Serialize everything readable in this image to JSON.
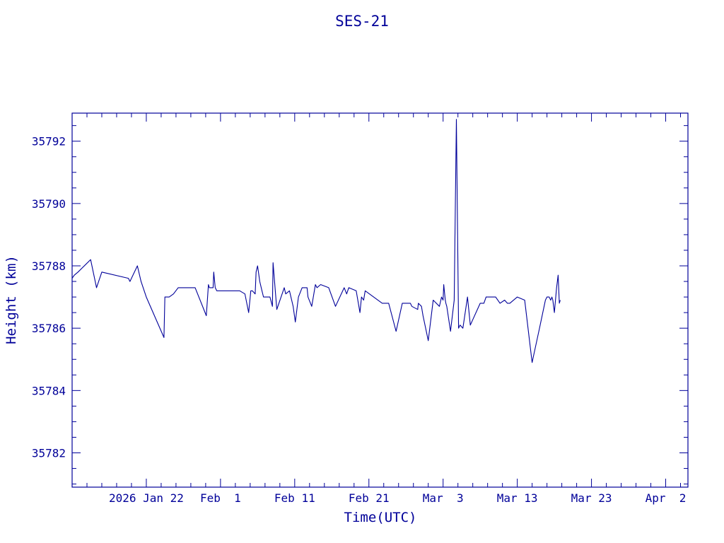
{
  "chart_data": {
    "type": "line",
    "title": "SES-21",
    "xlabel": "Time(UTC)",
    "ylabel": "Height (km)",
    "x_unit": "days",
    "xlim": [
      "2026-01-12",
      "2026-04-05"
    ],
    "ylim": [
      35780.9,
      35792.9
    ],
    "x_ticks": [
      {
        "date": "2026-01-22",
        "label": "2026 Jan 22"
      },
      {
        "date": "2026-02-01",
        "label": "Feb  1"
      },
      {
        "date": "2026-02-11",
        "label": "Feb 11"
      },
      {
        "date": "2026-02-21",
        "label": "Feb 21"
      },
      {
        "date": "2026-03-03",
        "label": "Mar  3"
      },
      {
        "date": "2026-03-13",
        "label": "Mar 13"
      },
      {
        "date": "2026-03-23",
        "label": "Mar 23"
      },
      {
        "date": "2026-04-02",
        "label": "Apr  2"
      }
    ],
    "y_ticks": [
      35782,
      35784,
      35786,
      35788,
      35790,
      35792
    ],
    "y_tick_labels": [
      "35782",
      "35784",
      "35786",
      "35788",
      "35790",
      "35792"
    ],
    "color": "#000099",
    "series": [
      {
        "x": [
          "2026-01-12 00:00",
          "2026-01-12 07:00",
          "2026-01-12 19:00",
          "2026-01-14 12:00",
          "2026-01-15 07:00",
          "2026-01-16 00:00",
          "2026-01-19 14:00",
          "2026-01-19 19:00",
          "2026-01-20 19:00",
          "2026-01-21 07:00",
          "2026-01-22 00:00",
          "2026-01-24 09:00",
          "2026-01-24 12:00",
          "2026-01-25 02:00",
          "2026-01-25 16:00",
          "2026-01-26 07:00",
          "2026-01-28 14:00",
          "2026-01-30 02:00",
          "2026-01-30 09:00",
          "2026-01-30 12:00",
          "2026-01-30 14:00",
          "2026-01-30 16:00",
          "2026-01-30 19:00",
          "2026-01-31 00:00",
          "2026-01-31 02:00",
          "2026-01-31 07:00",
          "2026-01-31 12:00",
          "2026-02-01 00:00",
          "2026-02-03 14:00",
          "2026-02-04 07:00",
          "2026-02-04 19:00",
          "2026-02-05 00:00",
          "2026-02-05 02:00",
          "2026-02-05 07:00",
          "2026-02-05 16:00",
          "2026-02-05 19:00",
          "2026-02-06 00:00",
          "2026-02-06 07:00",
          "2026-02-06 14:00",
          "2026-02-06 19:00",
          "2026-02-07 07:00",
          "2026-02-07 16:00",
          "2026-02-08 00:00",
          "2026-02-08 02:00",
          "2026-02-08 14:00",
          "2026-02-09 14:00",
          "2026-02-09 19:00",
          "2026-02-10 07:00",
          "2026-02-10 19:00",
          "2026-02-11 02:00",
          "2026-02-11 12:00",
          "2026-02-12 00:00",
          "2026-02-12 16:00",
          "2026-02-12 19:00",
          "2026-02-13 07:00",
          "2026-02-13 19:00",
          "2026-02-14 00:00",
          "2026-02-14 12:00",
          "2026-02-15 14:00",
          "2026-02-16 12:00",
          "2026-02-17 16:00",
          "2026-02-18 00:00",
          "2026-02-18 07:00",
          "2026-02-19 07:00",
          "2026-02-19 19:00",
          "2026-02-20 00:00",
          "2026-02-20 07:00",
          "2026-02-20 12:00",
          "2026-02-22 19:00",
          "2026-02-23 07:00",
          "2026-02-23 16:00",
          "2026-02-24 16:00",
          "2026-02-25 12:00",
          "2026-02-26 14:00",
          "2026-02-26 19:00",
          "2026-02-27 14:00",
          "2026-02-27 16:00",
          "2026-02-28 02:00",
          "2026-02-28 07:00",
          "2026-03-01 00:00",
          "2026-03-01 16:00",
          "2026-03-02 12:00",
          "2026-03-02 19:00",
          "2026-03-03 00:00",
          "2026-03-03 02:00",
          "2026-03-03 07:00",
          "2026-03-03 09:00",
          "2026-03-03 12:00",
          "2026-03-04 00:00",
          "2026-03-04 12:00",
          "2026-03-04 19:00",
          "2026-03-05 02:00",
          "2026-03-05 07:00",
          "2026-03-05 16:00",
          "2026-03-06 07:00",
          "2026-03-06 16:00",
          "2026-03-08 00:00",
          "2026-03-08 12:00",
          "2026-03-08 19:00",
          "2026-03-10 02:00",
          "2026-03-10 16:00",
          "2026-03-11 07:00",
          "2026-03-11 16:00",
          "2026-03-12 00:00",
          "2026-03-13 00:00",
          "2026-03-14 00:00",
          "2026-03-15 00:00",
          "2026-03-16 02:00",
          "2026-03-16 19:00",
          "2026-03-17 00:00",
          "2026-03-17 07:00",
          "2026-03-17 12:00",
          "2026-03-17 16:00",
          "2026-03-17 19:00",
          "2026-03-18 00:00",
          "2026-03-18 07:00",
          "2026-03-18 12:00",
          "2026-03-18 16:00",
          "2026-03-18 19:00"
        ],
        "y": [
          35787.6,
          35787.7,
          35787.8,
          35788.2,
          35787.3,
          35787.8,
          35787.6,
          35787.5,
          35788.0,
          35787.5,
          35787.0,
          35785.7,
          35787.0,
          35787.0,
          35787.1,
          35787.3,
          35787.3,
          35786.4,
          35787.4,
          35787.3,
          35787.3,
          35787.3,
          35787.3,
          35787.3,
          35787.8,
          35787.3,
          35787.2,
          35787.2,
          35787.2,
          35787.1,
          35786.5,
          35787.0,
          35787.2,
          35787.2,
          35787.1,
          35787.8,
          35788.0,
          35787.5,
          35787.2,
          35787.0,
          35787.0,
          35787.0,
          35786.7,
          35788.1,
          35786.6,
          35787.3,
          35787.1,
          35787.2,
          35786.7,
          35786.2,
          35787.0,
          35787.3,
          35787.3,
          35787.0,
          35786.7,
          35787.4,
          35787.3,
          35787.4,
          35787.3,
          35786.7,
          35787.3,
          35787.1,
          35787.3,
          35787.2,
          35786.5,
          35787.0,
          35786.9,
          35787.2,
          35786.8,
          35786.8,
          35786.8,
          35785.9,
          35786.8,
          35786.8,
          35786.7,
          35786.6,
          35786.8,
          35786.7,
          35786.4,
          35785.6,
          35786.9,
          35786.7,
          35787.0,
          35786.9,
          35787.4,
          35786.9,
          35786.8,
          35786.7,
          35785.9,
          35786.9,
          35792.7,
          35786.0,
          35786.1,
          35786.0,
          35787.0,
          35786.1,
          35786.8,
          35786.8,
          35787.0,
          35787.0,
          35786.8,
          35786.9,
          35786.8,
          35786.8,
          35787.0,
          35786.9,
          35784.9,
          35786.1,
          35786.9,
          35787.0,
          35787.0,
          35786.9,
          35787.0,
          35786.9,
          35786.5,
          35787.3,
          35787.7,
          35786.8,
          35786.9
        ]
      }
    ]
  }
}
